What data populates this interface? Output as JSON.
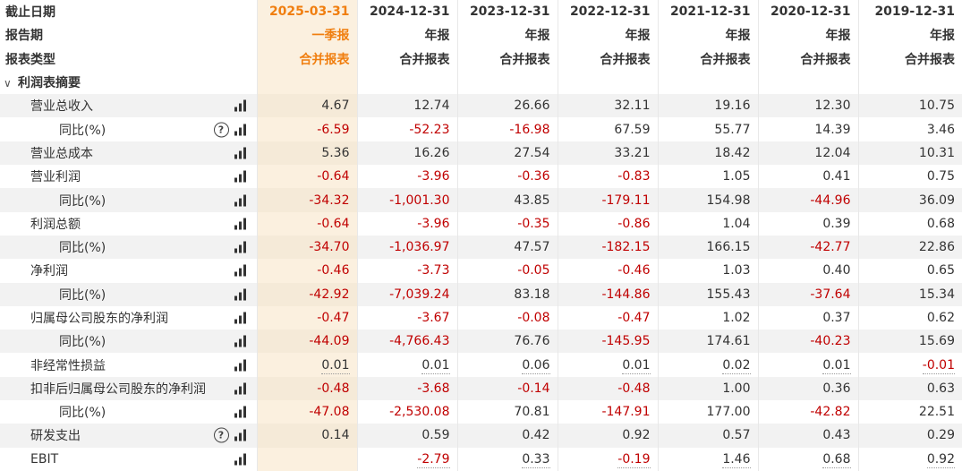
{
  "header": {
    "rows": [
      {
        "label": "截止日期",
        "values": [
          "2025-03-31",
          "2024-12-31",
          "2023-12-31",
          "2022-12-31",
          "2021-12-31",
          "2020-12-31",
          "2019-12-31"
        ]
      },
      {
        "label": "报告期",
        "values": [
          "一季报",
          "年报",
          "年报",
          "年报",
          "年报",
          "年报",
          "年报"
        ]
      },
      {
        "label": "报表类型",
        "values": [
          "合并报表",
          "合并报表",
          "合并报表",
          "合并报表",
          "合并报表",
          "合并报表",
          "合并报表"
        ]
      }
    ]
  },
  "section": {
    "title": "利润表摘要",
    "collapse_icon": "chevron-down-icon"
  },
  "colors": {
    "accent": "#f07e0f",
    "negative": "#c00000",
    "selected_bg": "#fbf0df"
  },
  "rows": [
    {
      "label": "营业总收入",
      "level": 1,
      "help": false,
      "values": [
        "4.67",
        "12.74",
        "26.66",
        "32.11",
        "19.16",
        "12.30",
        "10.75"
      ]
    },
    {
      "label": "同比(%)",
      "level": 2,
      "help": true,
      "values": [
        "-6.59",
        "-52.23",
        "-16.98",
        "67.59",
        "55.77",
        "14.39",
        "3.46"
      ]
    },
    {
      "label": "营业总成本",
      "level": 1,
      "help": false,
      "values": [
        "5.36",
        "16.26",
        "27.54",
        "33.21",
        "18.42",
        "12.04",
        "10.31"
      ]
    },
    {
      "label": "营业利润",
      "level": 1,
      "help": false,
      "values": [
        "-0.64",
        "-3.96",
        "-0.36",
        "-0.83",
        "1.05",
        "0.41",
        "0.75"
      ]
    },
    {
      "label": "同比(%)",
      "level": 2,
      "help": false,
      "values": [
        "-34.32",
        "-1,001.30",
        "43.85",
        "-179.11",
        "154.98",
        "-44.96",
        "36.09"
      ]
    },
    {
      "label": "利润总额",
      "level": 1,
      "help": false,
      "values": [
        "-0.64",
        "-3.96",
        "-0.35",
        "-0.86",
        "1.04",
        "0.39",
        "0.68"
      ]
    },
    {
      "label": "同比(%)",
      "level": 2,
      "help": false,
      "values": [
        "-34.70",
        "-1,036.97",
        "47.57",
        "-182.15",
        "166.15",
        "-42.77",
        "22.86"
      ]
    },
    {
      "label": "净利润",
      "level": 1,
      "help": false,
      "values": [
        "-0.46",
        "-3.73",
        "-0.05",
        "-0.46",
        "1.03",
        "0.40",
        "0.65"
      ]
    },
    {
      "label": "同比(%)",
      "level": 2,
      "help": false,
      "values": [
        "-42.92",
        "-7,039.24",
        "83.18",
        "-144.86",
        "155.43",
        "-37.64",
        "15.34"
      ]
    },
    {
      "label": "归属母公司股东的净利润",
      "level": 1,
      "help": false,
      "values": [
        "-0.47",
        "-3.67",
        "-0.08",
        "-0.47",
        "1.02",
        "0.37",
        "0.62"
      ]
    },
    {
      "label": "同比(%)",
      "level": 2,
      "help": false,
      "values": [
        "-44.09",
        "-4,766.43",
        "76.76",
        "-145.95",
        "174.61",
        "-40.23",
        "15.69"
      ]
    },
    {
      "label": "非经常性损益",
      "level": 1,
      "help": false,
      "underline": true,
      "values": [
        "0.01",
        "0.01",
        "0.06",
        "0.01",
        "0.02",
        "0.01",
        "-0.01"
      ]
    },
    {
      "label": "扣非后归属母公司股东的净利润",
      "level": 1,
      "help": false,
      "values": [
        "-0.48",
        "-3.68",
        "-0.14",
        "-0.48",
        "1.00",
        "0.36",
        "0.63"
      ]
    },
    {
      "label": "同比(%)",
      "level": 2,
      "help": false,
      "values": [
        "-47.08",
        "-2,530.08",
        "70.81",
        "-147.91",
        "177.00",
        "-42.82",
        "22.51"
      ]
    },
    {
      "label": "研发支出",
      "level": 1,
      "help": true,
      "values": [
        "0.14",
        "0.59",
        "0.42",
        "0.92",
        "0.57",
        "0.43",
        "0.29"
      ]
    },
    {
      "label": "EBIT",
      "level": 1,
      "help": false,
      "underline": true,
      "values": [
        "",
        "-2.79",
        "0.33",
        "-0.19",
        "1.46",
        "0.68",
        "0.92"
      ]
    }
  ]
}
